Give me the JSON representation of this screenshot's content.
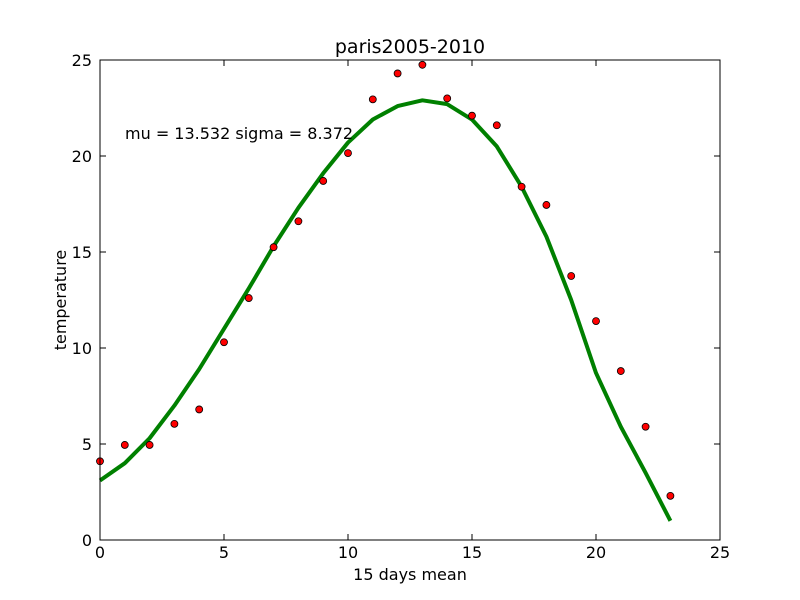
{
  "chart_data": {
    "type": "scatter",
    "title": "paris2005-2010",
    "xlabel": "15 days mean",
    "ylabel": "temperature",
    "xlim": [
      0,
      25
    ],
    "ylim": [
      0,
      25
    ],
    "xticks": [
      0,
      5,
      10,
      15,
      20,
      25
    ],
    "yticks": [
      0,
      5,
      10,
      15,
      20,
      25
    ],
    "grid": false,
    "annotation": "mu = 13.532 sigma = 8.372",
    "series": [
      {
        "type": "scatter",
        "color": "#ff0000",
        "x": [
          0,
          1,
          2,
          3,
          4,
          5,
          6,
          7,
          8,
          9,
          10,
          11,
          12,
          13,
          14,
          15,
          16,
          17,
          18,
          19,
          20,
          21,
          22,
          23
        ],
        "y": [
          4.1,
          4.95,
          4.95,
          6.05,
          6.8,
          10.3,
          12.6,
          15.25,
          16.6,
          18.7,
          20.15,
          22.95,
          24.3,
          24.75,
          23.0,
          22.1,
          21.6,
          18.4,
          17.45,
          13.75,
          11.4,
          8.8,
          5.9,
          2.3
        ]
      },
      {
        "type": "line",
        "color": "#008000",
        "x": [
          0,
          1,
          2,
          3,
          4,
          5,
          6,
          7,
          8,
          9,
          10,
          11,
          12,
          13,
          14,
          15,
          16,
          17,
          18,
          19,
          20,
          21,
          22,
          23
        ],
        "y": [
          3.1,
          4.0,
          5.3,
          7.0,
          8.9,
          11.0,
          13.1,
          15.3,
          17.3,
          19.1,
          20.7,
          21.9,
          22.6,
          22.9,
          22.7,
          21.9,
          20.5,
          18.4,
          15.8,
          12.5,
          8.7,
          5.9,
          3.5,
          1.0
        ]
      }
    ]
  }
}
